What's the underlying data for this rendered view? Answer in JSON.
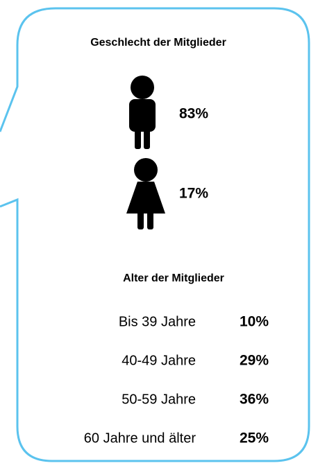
{
  "gender": {
    "title": "Geschlecht der Mitglieder",
    "male": "83%",
    "female": "17%"
  },
  "age": {
    "title": "Alter der Mitglieder",
    "rows": [
      [
        "Bis 39 Jahre",
        "10%"
      ],
      [
        "40-49 Jahre",
        "29%"
      ],
      [
        "50-59 Jahre",
        "36%"
      ],
      [
        "60 Jahre und älter",
        "25%"
      ]
    ]
  }
}
